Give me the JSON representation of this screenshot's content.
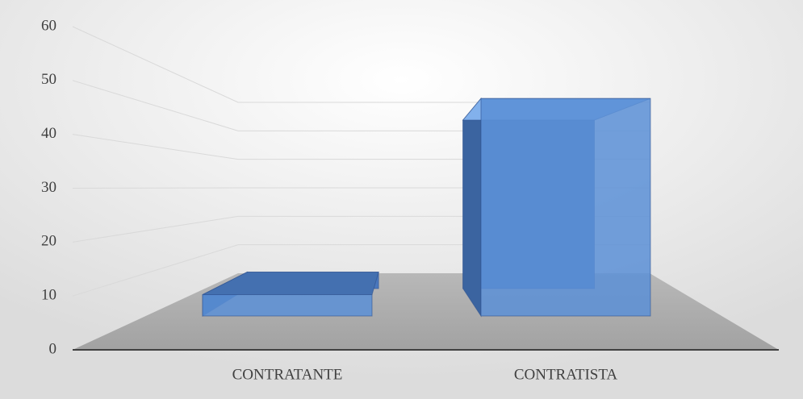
{
  "chart_data": {
    "type": "bar3d",
    "categories": [
      "CONTRATANTE",
      "CONTRATISTA"
    ],
    "values": [
      5,
      51
    ],
    "color": "#5b8fd6",
    "ylim": [
      0,
      60
    ],
    "yticks": [
      0,
      10,
      20,
      30,
      40,
      50,
      60
    ],
    "grid": true
  }
}
